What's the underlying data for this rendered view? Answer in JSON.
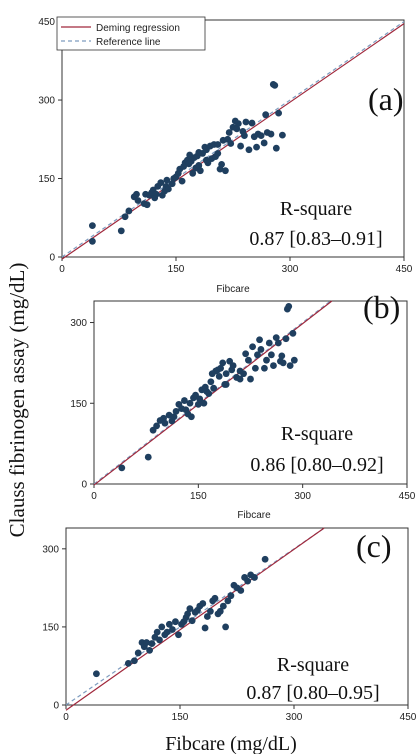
{
  "figure": {
    "ylabel": "Clauss fibrinogen assay (mg/dL)",
    "xlabel": "Fibcare (mg/dL)"
  },
  "legend": {
    "entries": [
      "Deming regression",
      "Reference line"
    ],
    "placement": "top-left",
    "colors": {
      "deming": "#a0283c",
      "reference": "#7e9cbf"
    }
  },
  "colors": {
    "point": "#1f3f5f"
  },
  "chart_data": [
    {
      "type": "scatter",
      "panel_label": "(a)",
      "xlabel": "Fibcare",
      "xlim": [
        0,
        450
      ],
      "ylim": [
        0,
        450
      ],
      "xticks": [
        0,
        150,
        300,
        450
      ],
      "yticks": [
        0,
        150,
        300,
        450
      ],
      "r_square_label": "R-square",
      "r_square": "0.87 [0.83–0.91]",
      "deming": {
        "slope": 1.0,
        "intercept": -4
      },
      "reference": {
        "slope": 1.0,
        "intercept": 0
      },
      "points": [
        [
          40,
          60
        ],
        [
          40,
          30
        ],
        [
          78,
          50
        ],
        [
          83,
          77
        ],
        [
          88,
          88
        ],
        [
          95,
          115
        ],
        [
          98,
          120
        ],
        [
          100,
          108
        ],
        [
          108,
          102
        ],
        [
          110,
          120
        ],
        [
          112,
          100
        ],
        [
          115,
          118
        ],
        [
          118,
          123
        ],
        [
          120,
          128
        ],
        [
          122,
          113
        ],
        [
          124,
          120
        ],
        [
          126,
          135
        ],
        [
          130,
          142
        ],
        [
          132,
          118
        ],
        [
          135,
          126
        ],
        [
          137,
          135
        ],
        [
          138,
          147
        ],
        [
          140,
          130
        ],
        [
          145,
          140
        ],
        [
          147,
          150
        ],
        [
          150,
          153
        ],
        [
          153,
          160
        ],
        [
          155,
          168
        ],
        [
          158,
          145
        ],
        [
          160,
          173
        ],
        [
          162,
          180
        ],
        [
          165,
          185
        ],
        [
          167,
          178
        ],
        [
          170,
          183
        ],
        [
          172,
          160
        ],
        [
          174,
          190
        ],
        [
          176,
          170
        ],
        [
          178,
          193
        ],
        [
          180,
          175
        ],
        [
          182,
          165
        ],
        [
          185,
          198
        ],
        [
          188,
          210
        ],
        [
          190,
          205
        ],
        [
          192,
          180
        ],
        [
          195,
          212
        ],
        [
          197,
          188
        ],
        [
          200,
          215
        ],
        [
          202,
          192
        ],
        [
          205,
          215
        ],
        [
          208,
          168
        ],
        [
          210,
          177
        ],
        [
          212,
          223
        ],
        [
          215,
          165
        ],
        [
          218,
          225
        ],
        [
          220,
          238
        ],
        [
          222,
          217
        ],
        [
          225,
          248
        ],
        [
          228,
          260
        ],
        [
          230,
          245
        ],
        [
          232,
          255
        ],
        [
          235,
          212
        ],
        [
          238,
          240
        ],
        [
          240,
          232
        ],
        [
          242,
          258
        ],
        [
          246,
          205
        ],
        [
          250,
          256
        ],
        [
          253,
          230
        ],
        [
          256,
          210
        ],
        [
          258,
          235
        ],
        [
          262,
          232
        ],
        [
          266,
          218
        ],
        [
          268,
          272
        ],
        [
          270,
          238
        ],
        [
          275,
          235
        ],
        [
          278,
          330
        ],
        [
          280,
          328
        ],
        [
          282,
          208
        ],
        [
          285,
          275
        ],
        [
          290,
          233
        ],
        [
          205,
          198
        ],
        [
          190,
          185
        ],
        [
          168,
          195
        ],
        [
          180,
          200
        ]
      ]
    },
    {
      "type": "scatter",
      "panel_label": "(b)",
      "xlabel": "Fibcare",
      "xlim": [
        0,
        450
      ],
      "ylim": [
        0,
        350
      ],
      "xticks": [
        0,
        150,
        300,
        450
      ],
      "yticks": [
        0,
        150,
        300
      ],
      "r_square_label": "R-square",
      "r_square": "0.86 [0.80–0.92]",
      "deming": {
        "slope": 1.0,
        "intercept": -2
      },
      "reference": {
        "slope": 1.0,
        "intercept": 0
      },
      "points": [
        [
          40,
          30
        ],
        [
          78,
          50
        ],
        [
          85,
          100
        ],
        [
          90,
          108
        ],
        [
          95,
          118
        ],
        [
          100,
          122
        ],
        [
          102,
          113
        ],
        [
          108,
          128
        ],
        [
          112,
          117
        ],
        [
          115,
          125
        ],
        [
          118,
          135
        ],
        [
          122,
          148
        ],
        [
          126,
          140
        ],
        [
          130,
          155
        ],
        [
          132,
          138
        ],
        [
          135,
          130
        ],
        [
          138,
          150
        ],
        [
          140,
          125
        ],
        [
          143,
          160
        ],
        [
          146,
          165
        ],
        [
          150,
          148
        ],
        [
          152,
          158
        ],
        [
          155,
          175
        ],
        [
          158,
          150
        ],
        [
          160,
          180
        ],
        [
          162,
          172
        ],
        [
          165,
          168
        ],
        [
          168,
          190
        ],
        [
          170,
          205
        ],
        [
          172,
          178
        ],
        [
          175,
          210
        ],
        [
          178,
          212
        ],
        [
          180,
          200
        ],
        [
          182,
          215
        ],
        [
          185,
          225
        ],
        [
          188,
          185
        ],
        [
          190,
          205
        ],
        [
          195,
          228
        ],
        [
          198,
          212
        ],
        [
          200,
          220
        ],
        [
          205,
          198
        ],
        [
          210,
          210
        ],
        [
          215,
          205
        ],
        [
          218,
          242
        ],
        [
          222,
          230
        ],
        [
          225,
          195
        ],
        [
          228,
          255
        ],
        [
          232,
          215
        ],
        [
          235,
          240
        ],
        [
          238,
          268
        ],
        [
          240,
          250
        ],
        [
          245,
          215
        ],
        [
          248,
          230
        ],
        [
          252,
          262
        ],
        [
          255,
          240
        ],
        [
          258,
          220
        ],
        [
          262,
          272
        ],
        [
          265,
          262
        ],
        [
          268,
          228
        ],
        [
          270,
          238
        ],
        [
          272,
          225
        ],
        [
          276,
          270
        ],
        [
          278,
          325
        ],
        [
          280,
          330
        ],
        [
          282,
          220
        ],
        [
          286,
          280
        ],
        [
          288,
          230
        ],
        [
          210,
          195
        ],
        [
          190,
          185
        ]
      ]
    },
    {
      "type": "scatter",
      "panel_label": "(c)",
      "xlabel": "",
      "xlim": [
        0,
        450
      ],
      "ylim": [
        0,
        350
      ],
      "xticks": [
        0,
        150,
        300,
        450
      ],
      "yticks": [
        0,
        150,
        300
      ],
      "r_square_label": "R-square",
      "r_square": "0.87 [0.80–0.95]",
      "deming": {
        "slope": 1.03,
        "intercept": -10
      },
      "reference": {
        "slope": 1.0,
        "intercept": 0
      },
      "points": [
        [
          40,
          60
        ],
        [
          82,
          80
        ],
        [
          90,
          85
        ],
        [
          95,
          100
        ],
        [
          100,
          120
        ],
        [
          103,
          112
        ],
        [
          106,
          120
        ],
        [
          110,
          105
        ],
        [
          113,
          118
        ],
        [
          117,
          130
        ],
        [
          120,
          140
        ],
        [
          123,
          125
        ],
        [
          126,
          150
        ],
        [
          130,
          135
        ],
        [
          133,
          140
        ],
        [
          136,
          155
        ],
        [
          140,
          145
        ],
        [
          144,
          160
        ],
        [
          148,
          135
        ],
        [
          152,
          155
        ],
        [
          155,
          160
        ],
        [
          158,
          168
        ],
        [
          160,
          175
        ],
        [
          163,
          185
        ],
        [
          166,
          162
        ],
        [
          170,
          178
        ],
        [
          173,
          182
        ],
        [
          176,
          190
        ],
        [
          180,
          195
        ],
        [
          183,
          148
        ],
        [
          186,
          170
        ],
        [
          190,
          180
        ],
        [
          193,
          200
        ],
        [
          196,
          205
        ],
        [
          200,
          175
        ],
        [
          203,
          180
        ],
        [
          207,
          190
        ],
        [
          210,
          150
        ],
        [
          213,
          200
        ],
        [
          217,
          210
        ],
        [
          221,
          230
        ],
        [
          225,
          225
        ],
        [
          230,
          220
        ],
        [
          235,
          245
        ],
        [
          239,
          238
        ],
        [
          243,
          250
        ],
        [
          248,
          245
        ],
        [
          262,
          280
        ]
      ]
    }
  ]
}
